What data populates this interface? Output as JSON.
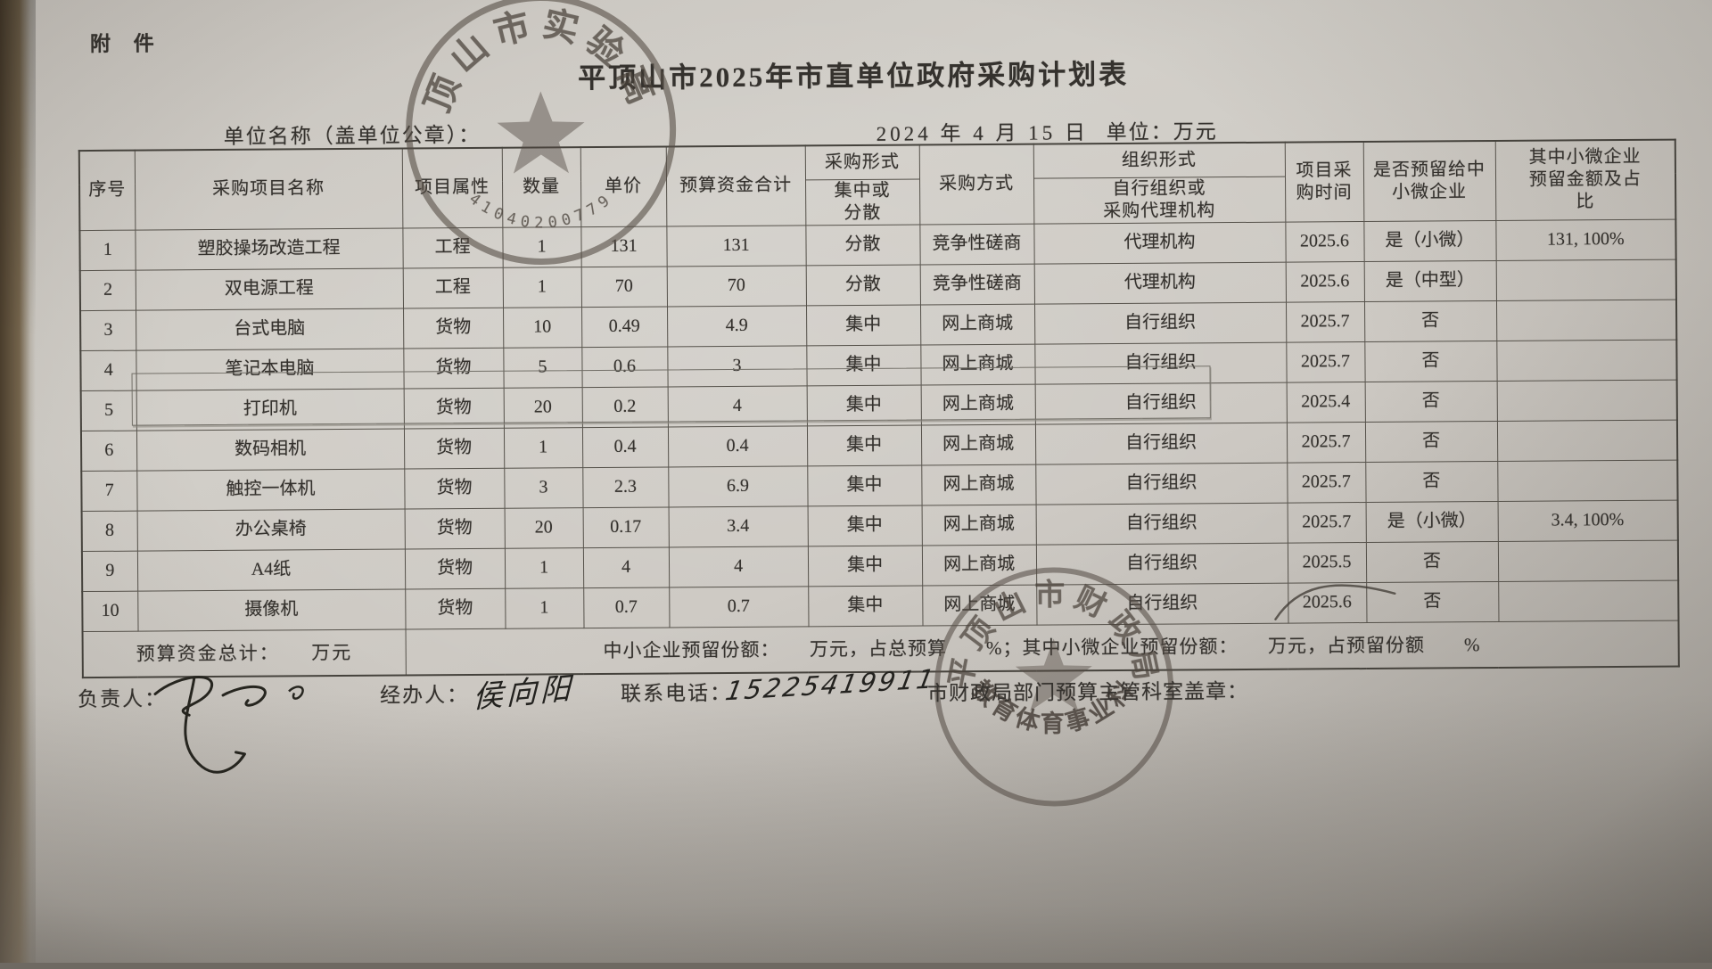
{
  "page": {
    "attachment_label": "附 件",
    "title": "平顶山市2025年市直单位政府采购计划表",
    "unit_name_label": "单位名称（盖单位公章）：",
    "date_text": "2024 年 4 月 15 日",
    "unit_label": "单位：万元"
  },
  "table": {
    "headers": {
      "seq": "序号",
      "project_name": "采购项目名称",
      "attribute": "项目属性",
      "quantity": "数量",
      "unit_price": "单价",
      "budget_total": "预算资金合计",
      "purchase_form": "采购形式",
      "purchase_form_sub": "集中或\n分散",
      "purchase_method": "采购方式",
      "organization_form": "组织形式",
      "organization_form_sub": "自行组织或\n采购代理机构",
      "purchase_time": "项目采\n购时间",
      "reserved_for_sme": "是否预留给中\n小微企业",
      "micro_reserved_amount": "其中小微企业\n预留金额及占\n比"
    },
    "rows": [
      [
        "1",
        "塑胶操场改造工程",
        "工程",
        "1",
        "131",
        "131",
        "分散",
        "竞争性磋商",
        "代理机构",
        "2025.6",
        "是（小微）",
        "131, 100%"
      ],
      [
        "2",
        "双电源工程",
        "工程",
        "1",
        "70",
        "70",
        "分散",
        "竞争性磋商",
        "代理机构",
        "2025.6",
        "是（中型）",
        ""
      ],
      [
        "3",
        "台式电脑",
        "货物",
        "10",
        "0.49",
        "4.9",
        "集中",
        "网上商城",
        "自行组织",
        "2025.7",
        "否",
        ""
      ],
      [
        "4",
        "笔记本电脑",
        "货物",
        "5",
        "0.6",
        "3",
        "集中",
        "网上商城",
        "自行组织",
        "2025.7",
        "否",
        ""
      ],
      [
        "5",
        "打印机",
        "货物",
        "20",
        "0.2",
        "4",
        "集中",
        "网上商城",
        "自行组织",
        "2025.4",
        "否",
        ""
      ],
      [
        "6",
        "数码相机",
        "货物",
        "1",
        "0.4",
        "0.4",
        "集中",
        "网上商城",
        "自行组织",
        "2025.7",
        "否",
        ""
      ],
      [
        "7",
        "触控一体机",
        "货物",
        "3",
        "2.3",
        "6.9",
        "集中",
        "网上商城",
        "自行组织",
        "2025.7",
        "否",
        ""
      ],
      [
        "8",
        "办公桌椅",
        "货物",
        "20",
        "0.17",
        "3.4",
        "集中",
        "网上商城",
        "自行组织",
        "2025.7",
        "是（小微）",
        "3.4, 100%"
      ],
      [
        "9",
        "A4纸",
        "货物",
        "1",
        "4",
        "4",
        "集中",
        "网上商城",
        "自行组织",
        "2025.5",
        "否",
        ""
      ],
      [
        "10",
        "摄像机",
        "货物",
        "1",
        "0.7",
        "0.7",
        "集中",
        "网上商城",
        "自行组织",
        "2025.6",
        "否",
        ""
      ]
    ],
    "summary": {
      "total_label": "预算资金总计：　　万元",
      "sme_text": "中小企业预留份额：　　万元，占总预算　　%；其中小微企业预留份额：　　万元，占预留份额　　%"
    }
  },
  "footer": {
    "leader_label": "负责人：",
    "handler_label": "经办人：",
    "handler_name": "侯向阳",
    "phone_label": "联系电话：",
    "phone_number": "15225419911",
    "stamp_label": "市财政局部门预算主管科室盖章："
  },
  "stamps": {
    "unit_seal_ring_text": "平顶山市实验高中",
    "unit_seal_serial": "41040200779",
    "finance_seal_ring_text": "平顶山市财政局",
    "finance_seal_bottom_text": "教育体育事业科"
  }
}
